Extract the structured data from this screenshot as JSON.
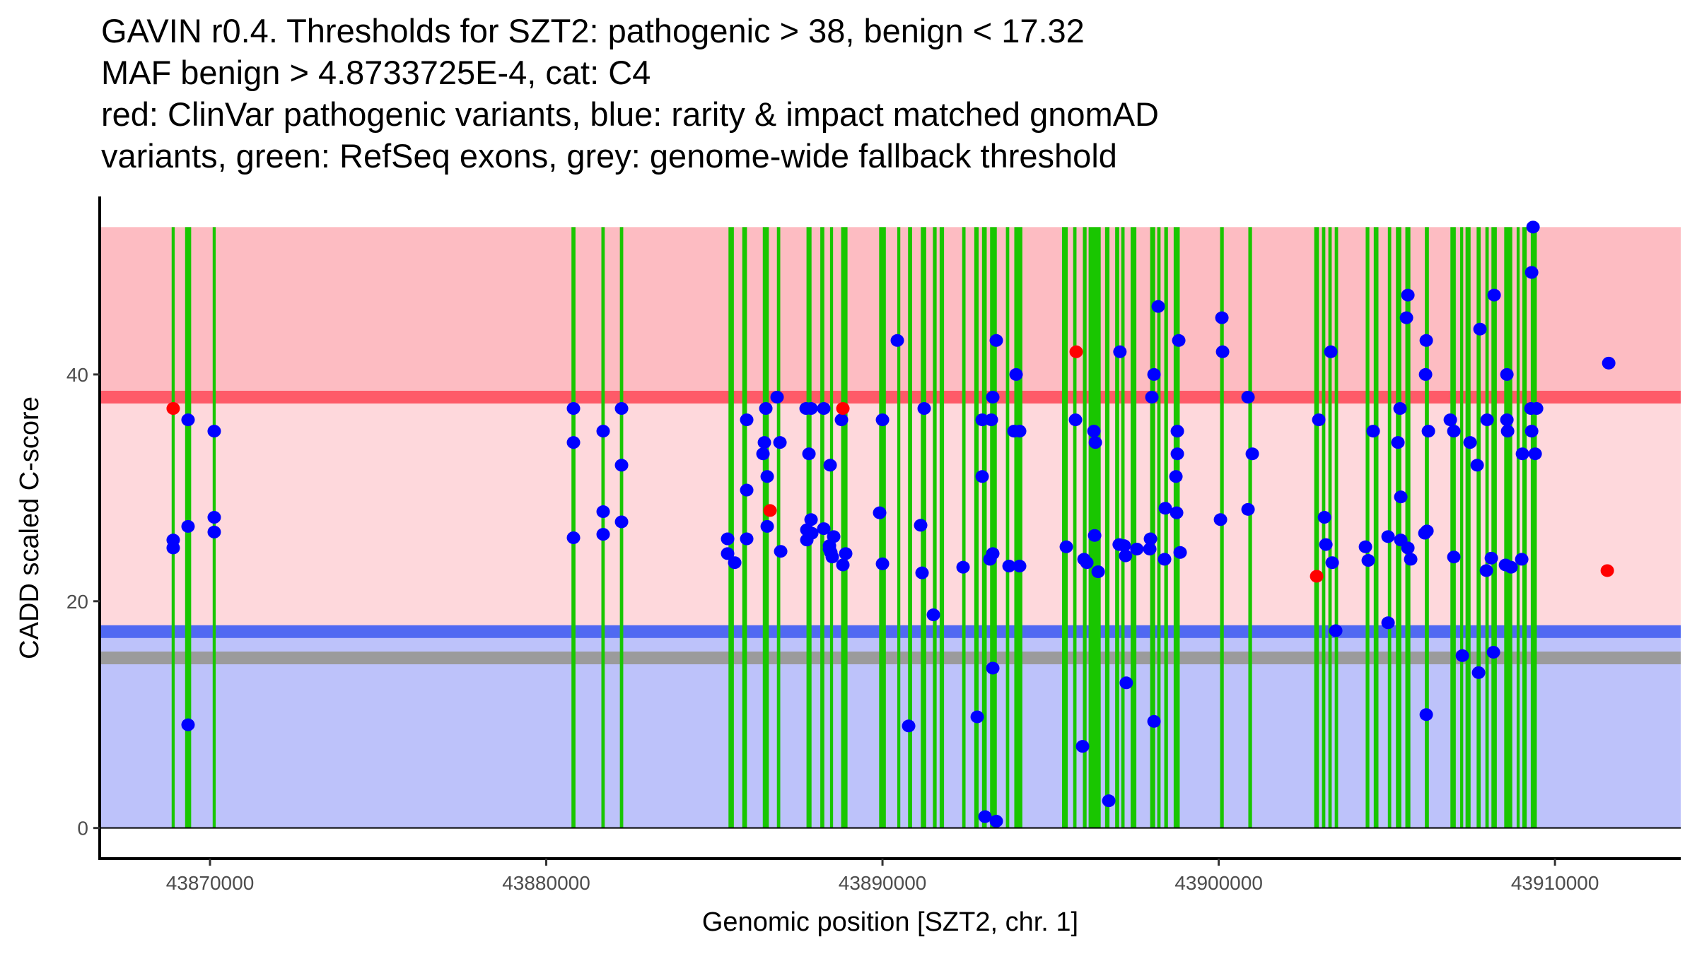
{
  "chart_data": {
    "type": "scatter",
    "title_lines": [
      "GAVIN r0.4. Thresholds for SZT2: pathogenic > 38, benign < 17.32",
      "MAF benign > 4.8733725E-4, cat: C4",
      "red: ClinVar pathogenic variants, blue: rarity & impact matched gnomAD",
      "variants, green: RefSeq exons, grey: genome-wide fallback threshold"
    ],
    "xlabel": "Genomic position [SZT2, chr. 1]",
    "ylabel": "CADD scaled C-score",
    "xlim": [
      43866720,
      43913740
    ],
    "ylim": [
      -2.7,
      55.7
    ],
    "xticks": [
      43870000,
      43880000,
      43890000,
      43900000,
      43910000
    ],
    "xtick_labels": [
      "43870000",
      "43880000",
      "43890000",
      "43900000",
      "43910000"
    ],
    "yticks": [
      0,
      20,
      40
    ],
    "ytick_labels": [
      "0",
      "20",
      "40"
    ],
    "grid": false,
    "legend": "none",
    "thresholds": {
      "pathogenic": 38,
      "benign": 17.32,
      "fallback": 15,
      "max_score": 53
    },
    "colors": {
      "pathogenic_zone": "#fdbcc2",
      "uncertain_zone": "#fed8dc",
      "benign_zone": "#bdc2fa",
      "pathogenic_line": "#fe5a68",
      "benign_line": "#5069f2",
      "fallback_line": "#9b9b9b",
      "exon": "#19c600",
      "clinvar": "#ff0000",
      "gnomad": "#0000ff"
    },
    "exons": [
      [
        43868860,
        43868950
      ],
      [
        43869260,
        43869440
      ],
      [
        43870080,
        43870170
      ],
      [
        43880750,
        43880870
      ],
      [
        43881640,
        43881740
      ],
      [
        43882190,
        43882290
      ],
      [
        43885420,
        43885580
      ],
      [
        43885830,
        43885970
      ],
      [
        43886440,
        43886620
      ],
      [
        43886860,
        43886960
      ],
      [
        43887740,
        43887890
      ],
      [
        43888150,
        43888270
      ],
      [
        43888440,
        43888530
      ],
      [
        43888770,
        43888960
      ],
      [
        43889900,
        43890100
      ],
      [
        43890440,
        43890530
      ],
      [
        43890760,
        43890880
      ],
      [
        43891140,
        43891300
      ],
      [
        43891500,
        43891610
      ],
      [
        43891700,
        43891830
      ],
      [
        43892370,
        43892470
      ],
      [
        43892730,
        43892860
      ],
      [
        43892960,
        43893100
      ],
      [
        43893200,
        43893400
      ],
      [
        43893670,
        43893770
      ],
      [
        43893920,
        43894160
      ],
      [
        43895340,
        43895510
      ],
      [
        43895670,
        43895770
      ],
      [
        43895960,
        43896070
      ],
      [
        43896130,
        43896490
      ],
      [
        43896620,
        43896750
      ],
      [
        43896920,
        43897040
      ],
      [
        43897100,
        43897200
      ],
      [
        43897380,
        43897550
      ],
      [
        43897960,
        43898110
      ],
      [
        43898170,
        43898270
      ],
      [
        43898380,
        43898490
      ],
      [
        43898660,
        43898840
      ],
      [
        43900040,
        43900150
      ],
      [
        43900880,
        43900990
      ],
      [
        43902840,
        43902980
      ],
      [
        43903070,
        43903170
      ],
      [
        43903260,
        43903360
      ],
      [
        43903450,
        43903550
      ],
      [
        43904370,
        43904480
      ],
      [
        43904610,
        43904750
      ],
      [
        43905030,
        43905130
      ],
      [
        43905270,
        43905430
      ],
      [
        43905550,
        43905700
      ],
      [
        43906130,
        43906250
      ],
      [
        43906890,
        43907050
      ],
      [
        43907180,
        43907270
      ],
      [
        43907340,
        43907490
      ],
      [
        43907670,
        43907790
      ],
      [
        43907930,
        43908030
      ],
      [
        43908110,
        43908270
      ],
      [
        43908490,
        43908730
      ],
      [
        43908860,
        43908950
      ],
      [
        43909030,
        43909160
      ],
      [
        43909280,
        43909460
      ]
    ],
    "series": [
      {
        "name": "ClinVar pathogenic variants",
        "color": "#ff0000",
        "points": [
          [
            43868906,
            37.0
          ],
          [
            43886656,
            28.0
          ],
          [
            43888822,
            37.0
          ],
          [
            43895761,
            42.0
          ],
          [
            43902912,
            22.2
          ],
          [
            43911556,
            22.7
          ]
        ]
      },
      {
        "name": "rarity & impact matched gnomAD variants",
        "color": "#0000ff",
        "points": [
          [
            43868906,
            25.4
          ],
          [
            43868906,
            24.7
          ],
          [
            43869348,
            36.0
          ],
          [
            43869348,
            26.6
          ],
          [
            43869348,
            9.1
          ],
          [
            43870126,
            35.0
          ],
          [
            43870126,
            27.4
          ],
          [
            43870126,
            26.1
          ],
          [
            43880810,
            37.0
          ],
          [
            43880810,
            34.0
          ],
          [
            43880810,
            25.6
          ],
          [
            43881693,
            35.0
          ],
          [
            43881693,
            27.9
          ],
          [
            43881693,
            25.9
          ],
          [
            43882240,
            37.0
          ],
          [
            43882240,
            32.0
          ],
          [
            43882240,
            27.0
          ],
          [
            43885394,
            25.5
          ],
          [
            43885394,
            24.2
          ],
          [
            43885605,
            23.4
          ],
          [
            43885962,
            36.0
          ],
          [
            43885962,
            29.8
          ],
          [
            43885962,
            25.5
          ],
          [
            43886530,
            37.0
          ],
          [
            43886488,
            34.0
          ],
          [
            43886446,
            33.0
          ],
          [
            43886572,
            31.0
          ],
          [
            43886572,
            26.6
          ],
          [
            43886866,
            38.0
          ],
          [
            43886951,
            34.0
          ],
          [
            43886972,
            24.4
          ],
          [
            43887728,
            37.0
          ],
          [
            43887876,
            37.0
          ],
          [
            43887813,
            33.0
          ],
          [
            43887876,
            27.2
          ],
          [
            43887750,
            26.3
          ],
          [
            43887750,
            25.4
          ],
          [
            43887897,
            26.0
          ],
          [
            43888254,
            37.0
          ],
          [
            43888254,
            26.4
          ],
          [
            43888444,
            32.0
          ],
          [
            43888549,
            25.7
          ],
          [
            43888423,
            24.9
          ],
          [
            43888423,
            24.6
          ],
          [
            43888465,
            24.3
          ],
          [
            43888507,
            23.9
          ],
          [
            43888780,
            36.0
          ],
          [
            43888906,
            24.2
          ],
          [
            43888822,
            23.2
          ],
          [
            43890000,
            36.0
          ],
          [
            43890000,
            23.3
          ],
          [
            43889915,
            27.8
          ],
          [
            43890441,
            43.0
          ],
          [
            43890778,
            9.0
          ],
          [
            43891240,
            37.0
          ],
          [
            43891135,
            26.7
          ],
          [
            43891177,
            22.5
          ],
          [
            43891514,
            18.8
          ],
          [
            43892397,
            23.0
          ],
          [
            43892965,
            36.0
          ],
          [
            43892965,
            31.0
          ],
          [
            43893238,
            36.0
          ],
          [
            43892818,
            9.8
          ],
          [
            43893385,
            43.0
          ],
          [
            43893280,
            38.0
          ],
          [
            43893280,
            24.2
          ],
          [
            43893280,
            14.1
          ],
          [
            43893196,
            23.7
          ],
          [
            43893049,
            1.0
          ],
          [
            43893385,
            0.6
          ],
          [
            43893764,
            23.1
          ],
          [
            43893974,
            40.0
          ],
          [
            43893911,
            35.0
          ],
          [
            43894079,
            35.0
          ],
          [
            43894079,
            23.1
          ],
          [
            43895467,
            24.8
          ],
          [
            43895740,
            36.0
          ],
          [
            43895993,
            23.7
          ],
          [
            43896077,
            23.4
          ],
          [
            43895951,
            7.2
          ],
          [
            43896288,
            35.0
          ],
          [
            43896330,
            34.0
          ],
          [
            43896309,
            25.8
          ],
          [
            43896414,
            22.6
          ],
          [
            43896730,
            2.4
          ],
          [
            43897061,
            42.0
          ],
          [
            43897040,
            25.0
          ],
          [
            43897187,
            24.9
          ],
          [
            43897229,
            24.0
          ],
          [
            43897250,
            12.8
          ],
          [
            43897565,
            24.6
          ],
          [
            43898201,
            46.0
          ],
          [
            43898075,
            40.0
          ],
          [
            43898012,
            38.0
          ],
          [
            43897970,
            25.5
          ],
          [
            43897949,
            24.6
          ],
          [
            43898075,
            9.4
          ],
          [
            43898411,
            28.2
          ],
          [
            43898390,
            23.7
          ],
          [
            43898811,
            43.0
          ],
          [
            43898769,
            35.0
          ],
          [
            43898769,
            33.0
          ],
          [
            43898727,
            31.0
          ],
          [
            43898748,
            27.8
          ],
          [
            43898853,
            24.3
          ],
          [
            43900094,
            45.0
          ],
          [
            43900115,
            42.0
          ],
          [
            43900052,
            27.2
          ],
          [
            43900872,
            38.0
          ],
          [
            43900872,
            28.1
          ],
          [
            43900998,
            33.0
          ],
          [
            43902975,
            36.0
          ],
          [
            43903333,
            42.0
          ],
          [
            43903144,
            27.4
          ],
          [
            43903186,
            25.0
          ],
          [
            43903375,
            23.4
          ],
          [
            43903480,
            17.4
          ],
          [
            43904363,
            24.8
          ],
          [
            43904447,
            23.6
          ],
          [
            43904594,
            35.0
          ],
          [
            43905036,
            25.7
          ],
          [
            43905036,
            18.1
          ],
          [
            43905393,
            37.0
          ],
          [
            43905330,
            34.0
          ],
          [
            43905414,
            29.2
          ],
          [
            43905414,
            25.4
          ],
          [
            43905625,
            47.0
          ],
          [
            43905583,
            45.0
          ],
          [
            43905625,
            24.7
          ],
          [
            43905709,
            23.7
          ],
          [
            43906172,
            43.0
          ],
          [
            43906151,
            40.0
          ],
          [
            43906235,
            35.0
          ],
          [
            43906130,
            26.0
          ],
          [
            43906193,
            26.2
          ],
          [
            43906172,
            10.0
          ],
          [
            43906887,
            36.0
          ],
          [
            43906992,
            35.0
          ],
          [
            43906992,
            23.9
          ],
          [
            43907245,
            15.2
          ],
          [
            43907476,
            34.0
          ],
          [
            43907686,
            32.0
          ],
          [
            43907770,
            44.0
          ],
          [
            43907728,
            13.7
          ],
          [
            43907981,
            36.0
          ],
          [
            43908191,
            47.0
          ],
          [
            43908107,
            23.8
          ],
          [
            43907960,
            22.7
          ],
          [
            43908170,
            15.5
          ],
          [
            43908570,
            40.0
          ],
          [
            43908570,
            36.0
          ],
          [
            43908591,
            35.0
          ],
          [
            43908528,
            23.2
          ],
          [
            43908696,
            23.0
          ],
          [
            43909011,
            23.7
          ],
          [
            43909032,
            33.0
          ],
          [
            43909348,
            53.0
          ],
          [
            43909306,
            49.0
          ],
          [
            43909285,
            37.0
          ],
          [
            43909453,
            37.0
          ],
          [
            43909306,
            35.0
          ],
          [
            43909411,
            33.0
          ],
          [
            43911598,
            41.0
          ]
        ]
      }
    ]
  }
}
